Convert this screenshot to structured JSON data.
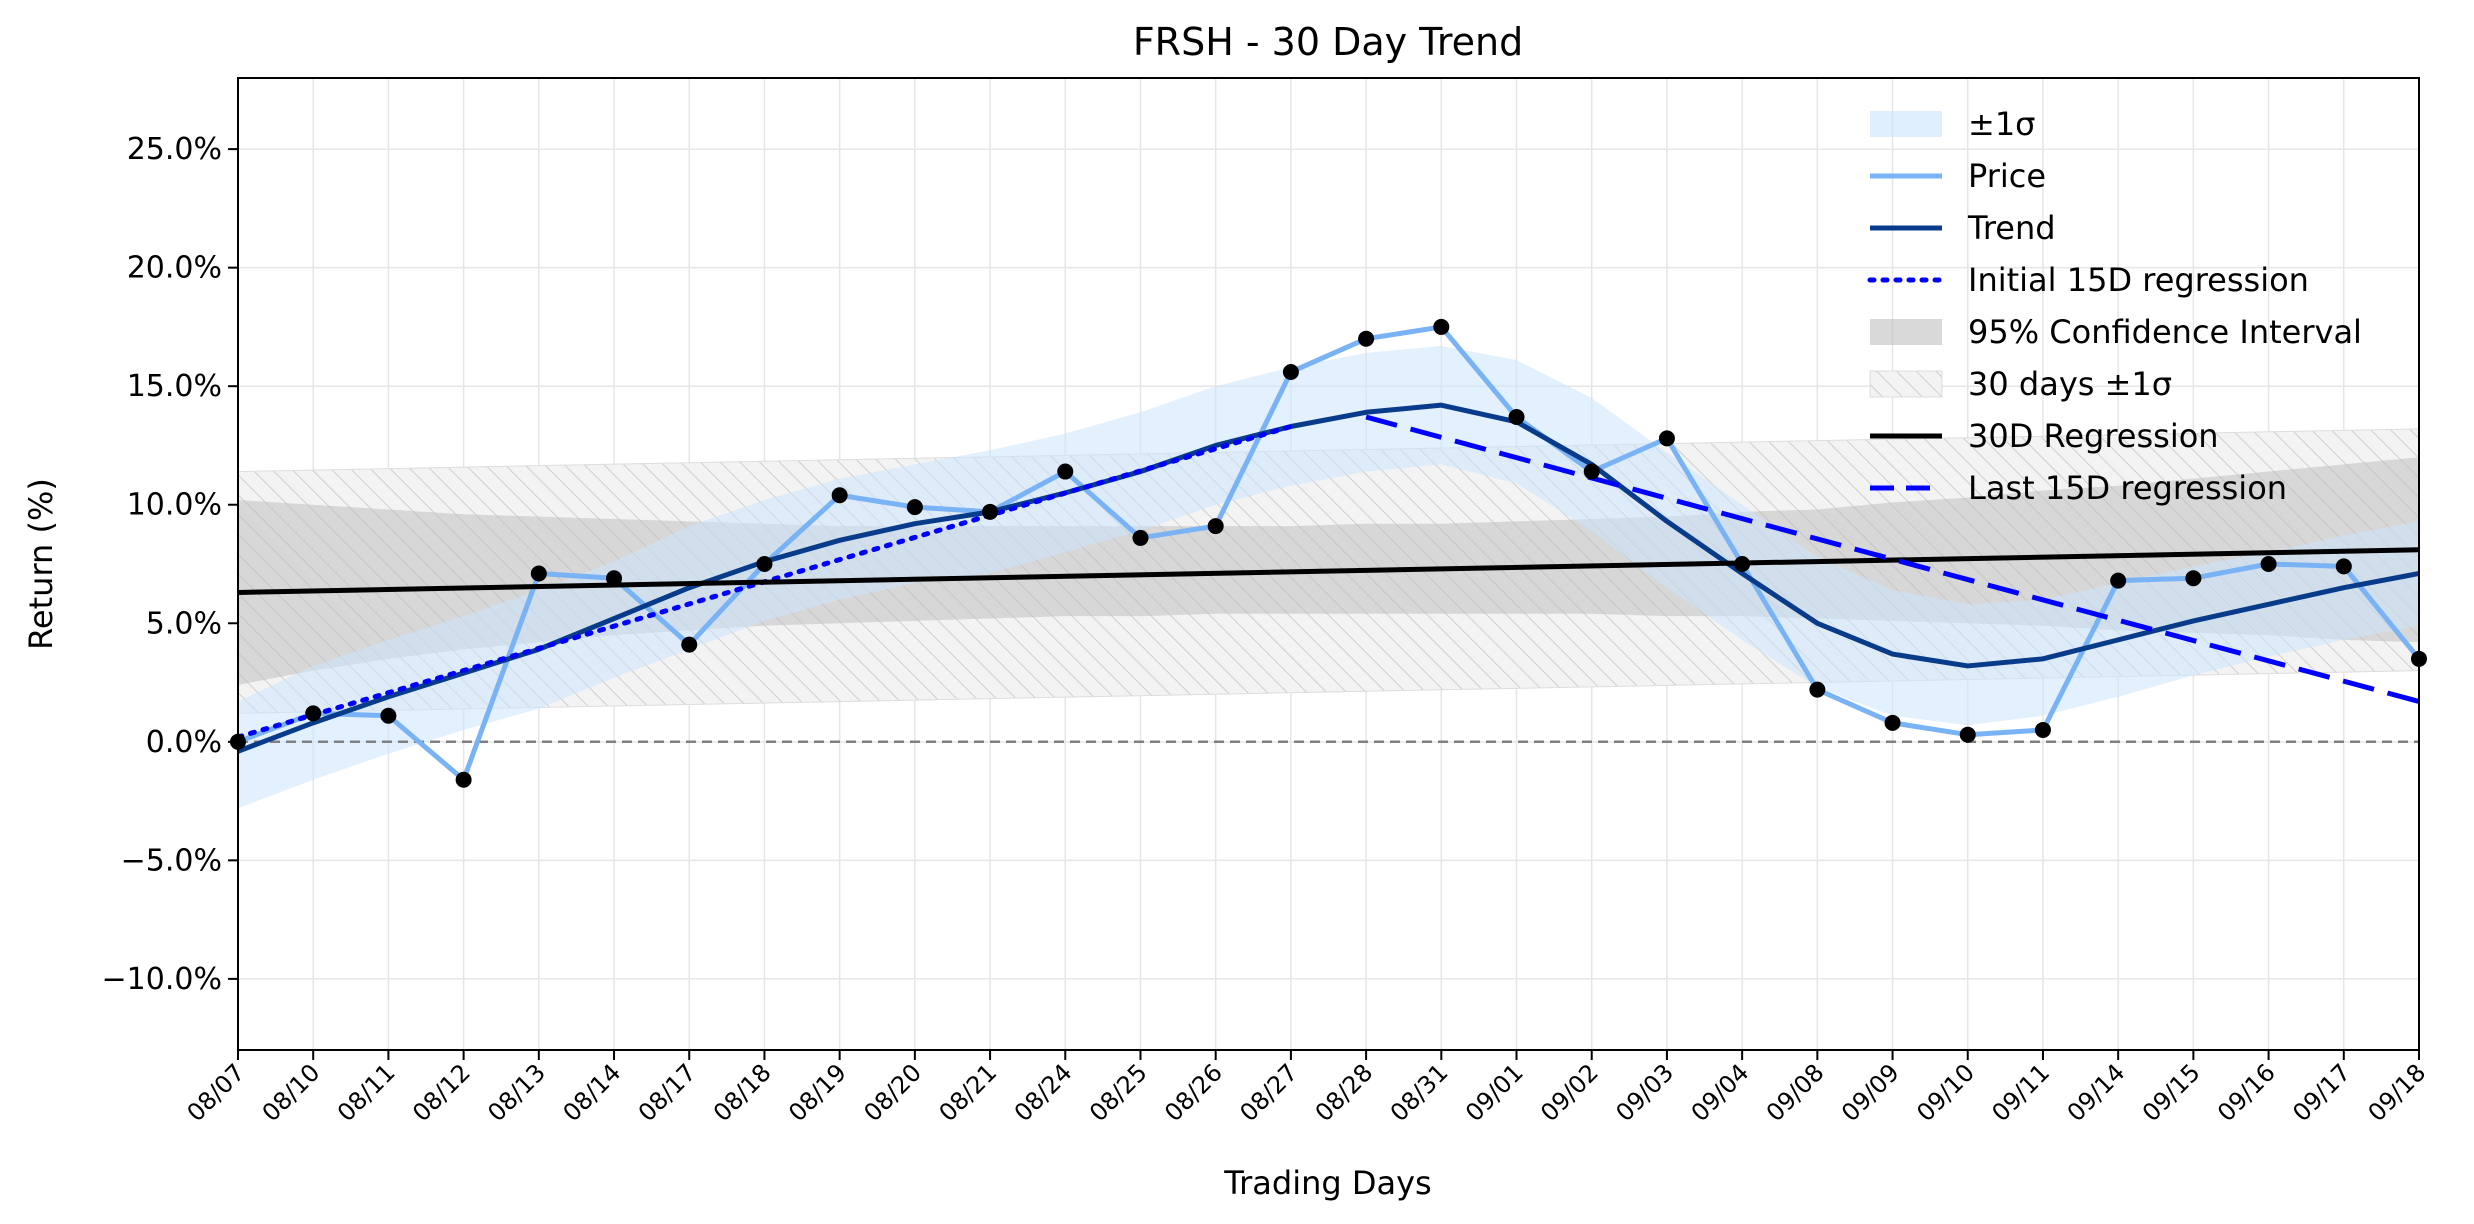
{
  "chart_data": {
    "type": "line",
    "title": "FRSH - 30 Day Trend",
    "xlabel": "Trading Days",
    "ylabel": "Return (%)",
    "ylim": [
      -13,
      28
    ],
    "yticks": [
      -10,
      -5,
      0,
      5,
      10,
      15,
      20,
      25
    ],
    "ytick_labels": [
      "−10.0%",
      "−5.0%",
      "0.0%",
      "5.0%",
      "10.0%",
      "15.0%",
      "20.0%",
      "25.0%"
    ],
    "grid": true,
    "legend_placement": "top-right",
    "categories": [
      "08/07",
      "08/10",
      "08/11",
      "08/12",
      "08/13",
      "08/14",
      "08/17",
      "08/18",
      "08/19",
      "08/20",
      "08/21",
      "08/24",
      "08/25",
      "08/26",
      "08/27",
      "08/28",
      "08/31",
      "09/01",
      "09/02",
      "09/03",
      "09/04",
      "09/08",
      "09/09",
      "09/10",
      "09/11",
      "09/14",
      "09/15",
      "09/16",
      "09/17",
      "09/18"
    ],
    "series": [
      {
        "name": "Price",
        "color": "#7ab3f5",
        "values": [
          0.0,
          1.2,
          1.1,
          -1.6,
          7.1,
          6.9,
          4.1,
          7.5,
          10.4,
          9.9,
          9.7,
          11.4,
          8.6,
          9.1,
          15.6,
          17.0,
          17.5,
          13.7,
          11.4,
          12.8,
          7.5,
          2.2,
          0.8,
          0.3,
          0.5,
          6.8,
          6.9,
          7.5,
          7.4,
          3.5
        ]
      },
      {
        "name": "Trend",
        "color": "#083b8a",
        "values": [
          -0.4,
          0.8,
          1.9,
          2.9,
          3.9,
          5.2,
          6.5,
          7.6,
          8.5,
          9.2,
          9.7,
          10.5,
          11.4,
          12.5,
          13.3,
          13.9,
          14.2,
          13.5,
          11.7,
          9.3,
          7.1,
          5.0,
          3.7,
          3.2,
          3.5,
          4.3,
          5.1,
          5.8,
          6.5,
          7.1
        ]
      },
      {
        "name": "Initial 15D regression",
        "color": "#0000ff",
        "style": "dotted",
        "x_range": [
          0,
          14
        ],
        "y_range": [
          0.2,
          13.3
        ]
      },
      {
        "name": "30D Regression",
        "color": "#000000",
        "style": "solid",
        "x_range": [
          0,
          29
        ],
        "y_range": [
          6.3,
          8.1
        ]
      },
      {
        "name": "Last 15D regression",
        "color": "#0000ff",
        "style": "dashed",
        "x_range": [
          15,
          29
        ],
        "y_range": [
          13.7,
          1.7
        ]
      }
    ],
    "bands": {
      "sigma": {
        "name": "±1σ",
        "color": "#cce4fb",
        "upper": [
          1.7,
          3.2,
          4.3,
          5.3,
          6.4,
          7.6,
          9.1,
          10.2,
          11.1,
          11.7,
          12.3,
          13.0,
          13.9,
          15.0,
          15.8,
          16.4,
          16.7,
          16.1,
          14.5,
          12.2,
          10.0,
          7.8,
          6.4,
          5.8,
          6.0,
          6.7,
          7.4,
          8.0,
          8.7,
          9.3
        ],
        "lower": [
          -2.8,
          -1.6,
          -0.5,
          0.5,
          1.4,
          2.7,
          3.9,
          5.1,
          6.0,
          6.7,
          7.1,
          8.0,
          8.9,
          10.0,
          10.8,
          11.4,
          11.7,
          10.9,
          8.9,
          6.5,
          4.3,
          2.3,
          1.1,
          0.7,
          1.1,
          1.9,
          2.8,
          3.6,
          4.3,
          4.9
        ]
      },
      "confidence_95": {
        "name": "95% Confidence Interval",
        "color": "#bfbfbf",
        "upper": [
          10.2,
          10.0,
          9.8,
          9.6,
          9.5,
          9.4,
          9.3,
          9.2,
          9.1,
          9.1,
          9.1,
          9.1,
          9.1,
          9.1,
          9.1,
          9.2,
          9.2,
          9.3,
          9.4,
          9.5,
          9.7,
          9.8,
          10.1,
          10.3,
          10.6,
          10.8,
          11.1,
          11.4,
          11.7,
          12.0
        ],
        "lower": [
          2.4,
          3.0,
          3.5,
          3.9,
          4.2,
          4.5,
          4.7,
          4.9,
          5.0,
          5.1,
          5.2,
          5.3,
          5.3,
          5.4,
          5.4,
          5.4,
          5.4,
          5.4,
          5.4,
          5.3,
          5.3,
          5.2,
          5.1,
          5.0,
          4.9,
          4.7,
          4.6,
          4.5,
          4.3,
          4.2
        ]
      },
      "thirty_day_sigma": {
        "name": "30 days ±1σ",
        "color": "#d9d9d9",
        "offset": 5.1
      }
    },
    "reference_line": {
      "y": 0,
      "color": "#808080",
      "style": "dashed"
    }
  }
}
